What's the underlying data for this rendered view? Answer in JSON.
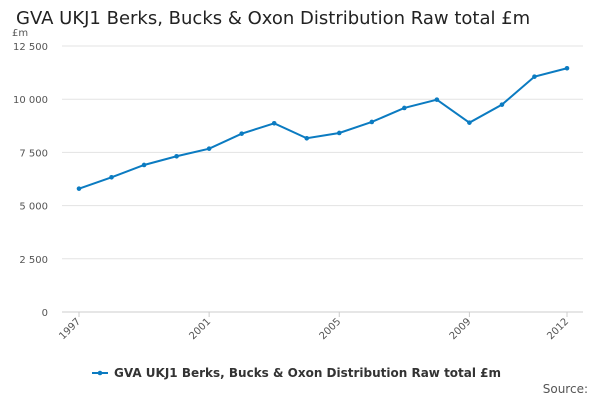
{
  "chart_data": {
    "type": "line",
    "title": "GVA UKJ1 Berks, Bucks & Oxon Distribution Raw total £m",
    "ylabel": "£m",
    "xlabel": "",
    "x": [
      1997,
      1998,
      1999,
      2000,
      2001,
      2002,
      2003,
      2004,
      2005,
      2006,
      2007,
      2008,
      2009,
      2010,
      2011,
      2012
    ],
    "series": [
      {
        "name": "GVA UKJ1 Berks, Bucks & Oxon Distribution Raw total £m",
        "values": [
          5795,
          6330,
          6909,
          7318,
          7675,
          8380,
          8868,
          8164,
          8413,
          8930,
          9588,
          9978,
          8898,
          9743,
          11059,
          11454
        ],
        "color": "#0b7bc1"
      }
    ],
    "ylim": [
      0,
      12500
    ],
    "yticks": [
      0,
      2500,
      5000,
      7500,
      10000,
      12500
    ],
    "ytick_labels": [
      "0",
      "2 500",
      "5 000",
      "7 500",
      "10 000",
      "12 500"
    ],
    "xticks": [
      "1997",
      "2001",
      "2005",
      "2009",
      "2012"
    ],
    "grid": true,
    "legend": "bottom",
    "source_label": "Source:"
  }
}
